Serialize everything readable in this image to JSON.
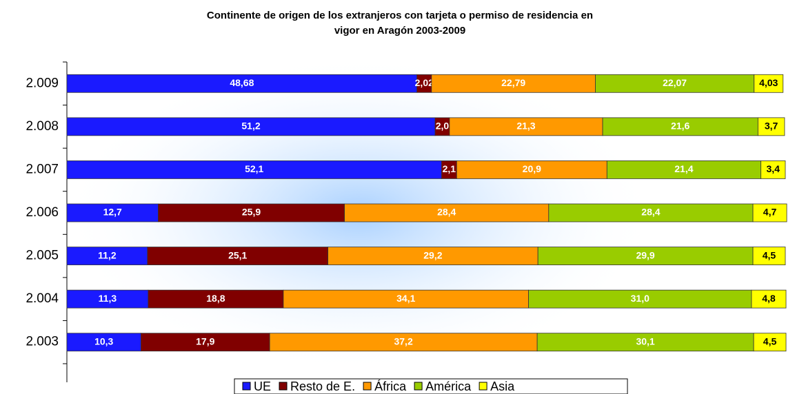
{
  "chart_data": {
    "type": "stacked-barh",
    "title": [
      "Continente de origen de los extranjeros con tarjeta o permiso de residencia en",
      "vigor en Aragón 2003-2009"
    ],
    "categories": [
      "2.009",
      "2.008",
      "2.007",
      "2.006",
      "2.005",
      "2.004",
      "2.003"
    ],
    "xlim": [
      0,
      100
    ],
    "legend": "bottom",
    "series": [
      {
        "name": "UE",
        "color": "#1a1aff",
        "values": [
          48.68,
          51.2,
          52.1,
          12.7,
          11.2,
          11.3,
          10.3
        ],
        "value_labels": [
          "48,68",
          "51,2",
          "52,1",
          "12,7",
          "11,2",
          "11,3",
          "10,3"
        ]
      },
      {
        "name": "Resto de E.",
        "color": "#800000",
        "values": [
          2.02,
          2.0,
          2.1,
          25.9,
          25.1,
          18.8,
          17.9
        ],
        "value_labels": [
          "2,02",
          "2,0",
          "2,1",
          "25,9",
          "25,1",
          "18,8",
          "17,9"
        ]
      },
      {
        "name": "África",
        "color": "#ff9900",
        "values": [
          22.79,
          21.3,
          20.9,
          28.4,
          29.2,
          34.1,
          37.2
        ],
        "value_labels": [
          "22,79",
          "21,3",
          "20,9",
          "28,4",
          "29,2",
          "34,1",
          "37,2"
        ]
      },
      {
        "name": "América",
        "color": "#99cc00",
        "values": [
          22.07,
          21.6,
          21.4,
          28.4,
          29.9,
          31.0,
          30.1
        ],
        "value_labels": [
          "22,07",
          "21,6",
          "21,4",
          "28,4",
          "29,9",
          "31,0",
          "30,1"
        ]
      },
      {
        "name": "Asia",
        "color": "#ffff00",
        "values": [
          4.03,
          3.7,
          3.4,
          4.7,
          4.5,
          4.8,
          4.5
        ],
        "value_labels": [
          "4,03",
          "3,7",
          "3,4",
          "4,7",
          "4,5",
          "4,8",
          "4,5"
        ]
      }
    ]
  }
}
